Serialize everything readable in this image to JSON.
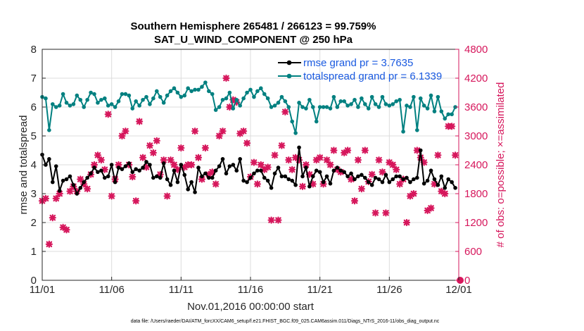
{
  "chart_data": {
    "type": "line",
    "title": "Southern Hemisphere 265481 / 266123 = 99.759%",
    "subtitle": "SAT_U_WIND_COMPONENT @ 250 hPa",
    "xlabel": "Nov.01,2016 00:00:00 start",
    "ylabel": "rmse and totalspread",
    "y2label": "# of obs: o=possible; ×=assimilated",
    "footnote": "data file: /Users/raeder/DAI/ATM_forcXX/CAM6_setup/f.e21.FHIST_BGC.f09_025.CAM6assim.011/Diags_NTrS_2016-11/obs_diag_output.nc",
    "xlim": [
      0,
      30
    ],
    "ylim": [
      0,
      8
    ],
    "y2lim": [
      0,
      4800
    ],
    "x_ticks": [
      0,
      5,
      10,
      15,
      20,
      25,
      30
    ],
    "x_tick_labels": [
      "11/01",
      "11/06",
      "11/11",
      "11/16",
      "11/21",
      "11/26",
      "12/01"
    ],
    "y_ticks": [
      0,
      1,
      2,
      3,
      4,
      5,
      6,
      7,
      8
    ],
    "y_tick_labels": [
      "0",
      "1",
      "2",
      "3",
      "4",
      "5",
      "6",
      "7",
      "8"
    ],
    "y2_ticks": [
      0,
      600,
      1200,
      1800,
      2400,
      3000,
      3600,
      4200,
      4800
    ],
    "y2_tick_labels": [
      "0",
      "600",
      "1200",
      "1800",
      "2400",
      "3000",
      "3600",
      "4200",
      "4800"
    ],
    "grid": true,
    "legend_position": "top-right",
    "colors": {
      "rmse": "#000000",
      "totalspread": "#008080",
      "obs": "#d6175c",
      "legend_text": "#1a5ae0"
    },
    "series": [
      {
        "name": "rmse grand pr = 3.7635",
        "axis": "left",
        "marker": "circle",
        "x": [
          0.0,
          0.25,
          0.5,
          0.75,
          1.0,
          1.25,
          1.5,
          1.75,
          2.0,
          2.25,
          2.5,
          2.75,
          3.0,
          3.25,
          3.5,
          3.75,
          4.0,
          4.25,
          4.5,
          4.75,
          5.0,
          5.25,
          5.5,
          5.75,
          6.0,
          6.25,
          6.5,
          6.75,
          7.0,
          7.25,
          7.5,
          7.75,
          8.0,
          8.25,
          8.5,
          8.75,
          9.0,
          9.25,
          9.5,
          9.75,
          10.0,
          10.25,
          10.5,
          10.75,
          11.0,
          11.25,
          11.5,
          11.75,
          12.0,
          12.25,
          12.5,
          12.75,
          13.0,
          13.25,
          13.5,
          13.75,
          14.0,
          14.25,
          14.5,
          14.75,
          15.0,
          15.25,
          15.5,
          15.75,
          16.0,
          16.25,
          16.5,
          16.75,
          17.0,
          17.25,
          17.5,
          17.75,
          18.0,
          18.25,
          18.5,
          18.75,
          19.0,
          19.25,
          19.5,
          19.75,
          20.0,
          20.25,
          20.5,
          20.75,
          21.0,
          21.25,
          21.5,
          21.75,
          22.0,
          22.25,
          22.5,
          22.75,
          23.0,
          23.25,
          23.5,
          23.75,
          24.0,
          24.25,
          24.5,
          24.75,
          25.0,
          25.25,
          25.5,
          25.75,
          26.0,
          26.25,
          26.5,
          26.75,
          27.0,
          27.25,
          27.5,
          27.75,
          28.0,
          28.25,
          28.5,
          28.75,
          29.0,
          29.25,
          29.5,
          29.75
        ],
        "values": [
          4.35,
          4.0,
          4.2,
          3.4,
          3.95,
          3.1,
          3.45,
          3.5,
          3.6,
          3.3,
          3.0,
          3.2,
          3.4,
          3.55,
          3.7,
          3.9,
          3.75,
          3.8,
          3.55,
          3.6,
          4.0,
          3.4,
          3.9,
          3.85,
          3.95,
          4.05,
          3.75,
          3.85,
          3.8,
          3.9,
          4.1,
          4.0,
          3.55,
          3.6,
          3.55,
          4.05,
          3.5,
          3.3,
          3.8,
          3.4,
          4.0,
          3.65,
          3.15,
          3.4,
          3.05,
          3.9,
          3.6,
          3.7,
          3.55,
          3.55,
          3.8,
          3.95,
          4.2,
          3.7,
          3.95,
          4.0,
          3.8,
          4.2,
          3.45,
          3.4,
          3.55,
          3.7,
          3.8,
          3.8,
          3.55,
          3.45,
          3.2,
          3.7,
          3.9,
          3.6,
          3.6,
          3.5,
          3.45,
          3.3,
          4.6,
          3.6,
          3.9,
          3.25,
          3.6,
          3.8,
          3.75,
          3.4,
          3.6,
          3.35,
          3.8,
          3.9,
          3.8,
          3.75,
          3.6,
          3.7,
          3.5,
          3.6,
          3.65,
          3.55,
          3.4,
          3.3,
          3.55,
          3.5,
          3.4,
          3.65,
          3.4,
          3.5,
          3.6,
          3.6,
          3.5,
          3.55,
          3.4,
          3.5,
          3.55,
          4.5,
          3.35,
          3.45,
          3.8,
          3.5,
          3.3,
          3.6,
          3.2,
          3.5,
          3.4,
          3.2
        ]
      },
      {
        "name": "totalspread grand pr = 6.1339",
        "axis": "left",
        "marker": "circle",
        "x": [
          0.0,
          0.25,
          0.5,
          0.75,
          1.0,
          1.25,
          1.5,
          1.75,
          2.0,
          2.25,
          2.5,
          2.75,
          3.0,
          3.25,
          3.5,
          3.75,
          4.0,
          4.25,
          4.5,
          4.75,
          5.0,
          5.25,
          5.5,
          5.75,
          6.0,
          6.25,
          6.5,
          6.75,
          7.0,
          7.25,
          7.5,
          7.75,
          8.0,
          8.25,
          8.5,
          8.75,
          9.0,
          9.25,
          9.5,
          9.75,
          10.0,
          10.25,
          10.5,
          10.75,
          11.0,
          11.25,
          11.5,
          11.75,
          12.0,
          12.25,
          12.5,
          12.75,
          13.0,
          13.25,
          13.5,
          13.75,
          14.0,
          14.25,
          14.5,
          14.75,
          15.0,
          15.25,
          15.5,
          15.75,
          16.0,
          16.25,
          16.5,
          16.75,
          17.0,
          17.25,
          17.5,
          17.75,
          18.0,
          18.25,
          18.5,
          18.75,
          19.0,
          19.25,
          19.5,
          19.75,
          20.0,
          20.25,
          20.5,
          20.75,
          21.0,
          21.25,
          21.5,
          21.75,
          22.0,
          22.25,
          22.5,
          22.75,
          23.0,
          23.25,
          23.5,
          23.75,
          24.0,
          24.25,
          24.5,
          24.75,
          25.0,
          25.25,
          25.5,
          25.75,
          26.0,
          26.25,
          26.5,
          26.75,
          27.0,
          27.25,
          27.5,
          27.75,
          28.0,
          28.25,
          28.5,
          28.75,
          29.0,
          29.25,
          29.5,
          29.75
        ],
        "values": [
          6.35,
          6.3,
          5.2,
          6.1,
          6.0,
          6.05,
          6.45,
          6.15,
          6.05,
          6.1,
          6.4,
          6.25,
          6.0,
          6.25,
          6.5,
          6.45,
          6.15,
          6.25,
          6.3,
          6.05,
          6.1,
          6.0,
          6.2,
          6.45,
          6.45,
          6.4,
          5.95,
          6.2,
          6.05,
          6.25,
          6.35,
          6.1,
          6.3,
          6.55,
          6.35,
          6.15,
          6.4,
          6.55,
          6.65,
          6.5,
          6.35,
          6.4,
          6.65,
          6.55,
          6.6,
          6.6,
          6.7,
          6.85,
          6.55,
          6.45,
          5.9,
          6.0,
          6.25,
          6.3,
          6.5,
          5.95,
          6.25,
          6.05,
          6.3,
          6.5,
          6.6,
          6.35,
          6.55,
          6.65,
          6.45,
          6.3,
          6.0,
          6.05,
          6.15,
          6.35,
          6.2,
          6.0,
          5.5,
          5.1,
          6.15,
          6.0,
          5.95,
          6.25,
          6.0,
          5.5,
          6.0,
          6.0,
          6.0,
          5.95,
          6.35,
          6.0,
          6.2,
          6.2,
          6.05,
          6.1,
          6.25,
          6.0,
          6.3,
          6.1,
          5.95,
          6.35,
          6.1,
          6.0,
          6.35,
          6.1,
          6.05,
          6.1,
          6.2,
          6.25,
          5.15,
          6.05,
          6.0,
          6.35,
          5.2,
          6.3,
          6.05,
          5.95,
          6.4,
          5.85,
          6.35,
          5.85,
          5.6,
          5.75,
          5.75,
          6.0
        ]
      }
    ],
    "obs_assimilated": {
      "name": "# of obs assimilated",
      "axis": "right",
      "marker": "x",
      "x": [
        0.0,
        0.25,
        0.5,
        0.75,
        1.0,
        1.25,
        1.5,
        1.75,
        2.0,
        2.25,
        2.5,
        2.75,
        3.0,
        3.25,
        3.5,
        3.75,
        4.0,
        4.25,
        4.5,
        4.75,
        5.0,
        5.25,
        5.5,
        5.75,
        6.0,
        6.25,
        6.5,
        6.75,
        7.0,
        7.25,
        7.5,
        7.75,
        8.0,
        8.25,
        8.5,
        8.75,
        9.0,
        9.25,
        9.5,
        9.75,
        10.0,
        10.25,
        10.5,
        10.75,
        11.0,
        11.25,
        11.5,
        11.75,
        12.0,
        12.25,
        12.5,
        12.75,
        13.0,
        13.25,
        13.5,
        13.75,
        14.0,
        14.25,
        14.5,
        14.75,
        15.0,
        15.25,
        15.5,
        15.75,
        16.0,
        16.25,
        16.5,
        16.75,
        17.0,
        17.25,
        17.5,
        17.75,
        18.0,
        18.25,
        18.5,
        18.75,
        19.0,
        19.25,
        19.5,
        19.75,
        20.0,
        20.25,
        20.5,
        20.75,
        21.0,
        21.25,
        21.5,
        21.75,
        22.0,
        22.25,
        22.5,
        22.75,
        23.0,
        23.25,
        23.5,
        23.75,
        24.0,
        24.25,
        24.5,
        24.75,
        25.0,
        25.25,
        25.5,
        25.75,
        26.0,
        26.25,
        26.5,
        26.75,
        27.0,
        27.25,
        27.5,
        27.75,
        28.0,
        28.25,
        28.5,
        28.75,
        29.0,
        29.25,
        29.5,
        29.75
      ],
      "values": [
        1650,
        1700,
        750,
        1300,
        1700,
        1800,
        1100,
        1050,
        1850,
        1950,
        1850,
        2100,
        2000,
        1900,
        2200,
        2400,
        2600,
        2500,
        2300,
        3450,
        1750,
        2100,
        2400,
        3000,
        3100,
        2400,
        2150,
        1650,
        3300,
        2550,
        2350,
        2800,
        2650,
        2900,
        2200,
        2500,
        1750,
        2500,
        2400,
        2300,
        2750,
        2350,
        2400,
        2400,
        3100,
        2550,
        2100,
        2750,
        2200,
        2250,
        2000,
        3000,
        3100,
        4200,
        3600,
        3750,
        3700,
        3050,
        3100,
        2850,
        2150,
        2450,
        2000,
        2400,
        2300,
        2350,
        1250,
        2600,
        1250,
        2800,
        3500,
        2500,
        2300,
        2550,
        2500,
        1950,
        2400,
        2200,
        2000,
        2500,
        2550,
        2000,
        2500,
        2400,
        2700,
        2300,
        2250,
        2650,
        2700,
        2100,
        1650,
        2500,
        1900,
        2700,
        2050,
        2200,
        1400,
        2500,
        2250,
        1400,
        2450,
        2400,
        2300,
        2000,
        2100,
        1200,
        1750,
        1800,
        2700,
        2550,
        2450,
        1450,
        1500,
        2000,
        2600,
        1850,
        1800,
        3200,
        3200,
        2600
      ]
    }
  }
}
